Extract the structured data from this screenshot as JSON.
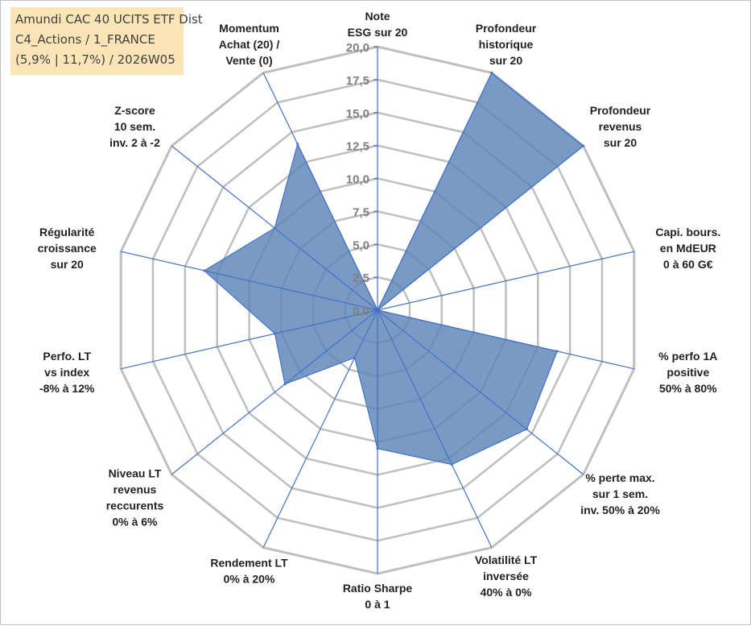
{
  "title_lines": [
    "Amundi CAC 40 UCITS ETF Dist",
    "C4_Actions / 1_FRANCE",
    "(5,9% | 11,7%) / 2026W05"
  ],
  "colors": {
    "fill": "#5b84b7",
    "outline": "#4472c4",
    "axis": "#4472c4",
    "grid": "#bfbfbf",
    "title_bg": "#fbe5b6"
  },
  "chart_data": {
    "type": "radar",
    "title": "",
    "rmin": 0,
    "rmax": 20,
    "tick_labels": [
      "0,0",
      "2,5",
      "5,0",
      "7,5",
      "10,0",
      "12,5",
      "15,0",
      "17,5",
      "20,0"
    ],
    "ticks": [
      0,
      2.5,
      5,
      7.5,
      10,
      12.5,
      15,
      17.5,
      20
    ],
    "grid": true,
    "axes": [
      {
        "label": [
          "Note",
          "ESG sur 20"
        ],
        "value": 0
      },
      {
        "label": [
          "Profondeur",
          "historique",
          "sur 20"
        ],
        "value": 20
      },
      {
        "label": [
          "Profondeur",
          "revenus",
          "sur 20"
        ],
        "value": 20
      },
      {
        "label": [
          "Capi. bours.",
          "en MdEUR",
          "0 à 60 G€"
        ],
        "value": 0
      },
      {
        "label": [
          "% perfo 1A",
          "positive",
          "50% à 80%"
        ],
        "value": 14
      },
      {
        "label": [
          "% perte max.",
          "sur 1 sem.",
          "inv. 50% à 20%"
        ],
        "value": 14.5
      },
      {
        "label": [
          "Volatilité LT",
          "inversée",
          "40% à 0%"
        ],
        "value": 13
      },
      {
        "label": [
          "Ratio Sharpe",
          "0 à 1"
        ],
        "value": 10.5
      },
      {
        "label": [
          "Rendement LT",
          "0% à 20%"
        ],
        "value": 4
      },
      {
        "label": [
          "Niveau LT",
          "revenus",
          "reccurents",
          "0% à 6%"
        ],
        "value": 9
      },
      {
        "label": [
          "Perfo. LT",
          "vs index",
          "-8% à 12%"
        ],
        "value": 8
      },
      {
        "label": [
          "Régularité",
          "croissance",
          "sur 20"
        ],
        "value": 13.5
      },
      {
        "label": [
          "Z-score",
          "10 sem.",
          "inv. 2 à -2"
        ],
        "value": 10
      },
      {
        "label": [
          "Momentum",
          "Achat (20) /",
          "Vente (0)"
        ],
        "value": 14
      }
    ]
  }
}
